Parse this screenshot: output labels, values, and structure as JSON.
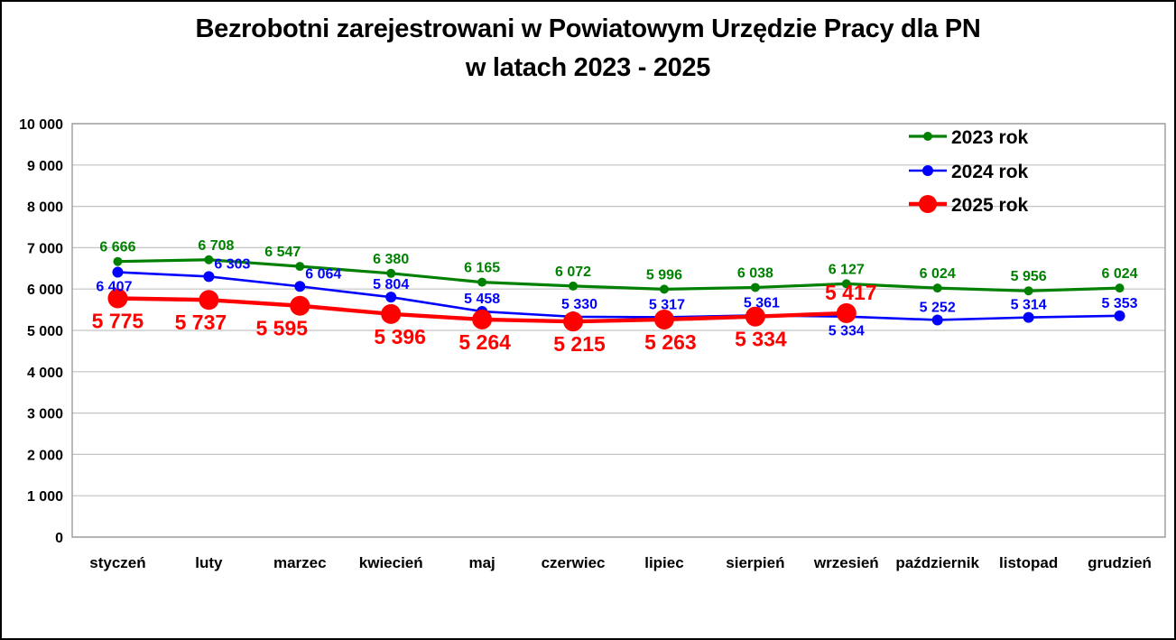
{
  "page": {
    "title_line1": "Bezrobotni zarejestrowani w Powiatowym Urzędzie Pracy dla PN",
    "title_line2": "w latach 2023 - 2025"
  },
  "colors": {
    "background": "#ffffff",
    "page_border": "#000000",
    "text": "#000000",
    "gridline": "#c3c3c3",
    "axis_border": "#9b9b9b"
  },
  "chart_data": {
    "type": "line",
    "title": "Bezrobotni zarejestrowani w Powiatowym Urzędzie Pracy dla PN w latach 2023 - 2025",
    "categories": [
      "styczeń",
      "luty",
      "marzec",
      "kwiecień",
      "maj",
      "czerwiec",
      "lipiec",
      "sierpień",
      "wrzesień",
      "październik",
      "listopad",
      "grudzień"
    ],
    "xlabel": "",
    "ylabel": "",
    "grid": "horizontal",
    "legend_position": "top-right",
    "y_axis": {
      "min": 0,
      "max": 10000,
      "step": 1000,
      "tick_labels": [
        "0",
        "1 000",
        "2 000",
        "3 000",
        "4 000",
        "5 000",
        "6 000",
        "7 000",
        "8 000",
        "9 000",
        "10 000"
      ]
    },
    "series": [
      {
        "name": "2023 rok",
        "color": "#008000",
        "line_width": 3.2,
        "marker_radius": 5,
        "label_font_size": 16,
        "values": [
          6666,
          6708,
          6547,
          6380,
          6165,
          6072,
          5996,
          6038,
          6127,
          6024,
          5956,
          6024
        ],
        "labels": [
          "6 666",
          "6 708",
          "6 547",
          "6 380",
          "6 165",
          "6 072",
          "5 996",
          "6 038",
          "6 127",
          "6 024",
          "5 956",
          "6 024"
        ],
        "label_positions": [
          "above",
          "above",
          "above",
          "above",
          "above",
          "above",
          "above",
          "above",
          "above",
          "above",
          "above",
          "above"
        ],
        "label_dx": [
          0,
          8,
          -19,
          0,
          0,
          0,
          0,
          0,
          0,
          0,
          0,
          0
        ]
      },
      {
        "name": "2024 rok",
        "color": "#0000ff",
        "line_width": 2.6,
        "marker_radius": 6,
        "label_font_size": 16,
        "values": [
          6407,
          6303,
          6064,
          5804,
          5458,
          5330,
          5317,
          5361,
          5334,
          5252,
          5314,
          5353
        ],
        "labels": [
          "6 407",
          "6 303",
          "6 064",
          "5 804",
          "5 458",
          "5 330",
          "5 317",
          "5 361",
          "5 334",
          "5 252",
          "5 314",
          "5 353"
        ],
        "label_positions": [
          "below",
          "above",
          "above",
          "above",
          "above",
          "above",
          "above",
          "above",
          "below",
          "above",
          "above",
          "above"
        ],
        "label_dx": [
          -4,
          26,
          26,
          0,
          0,
          7,
          3,
          7,
          0,
          0,
          0,
          0
        ]
      },
      {
        "name": "2025 rok",
        "color": "#ff0000",
        "line_width": 4.4,
        "marker_radius": 11,
        "label_font_size": 23,
        "values": [
          5775,
          5737,
          5595,
          5396,
          5264,
          5215,
          5263,
          5334,
          5417
        ],
        "labels": [
          "5 775",
          "5 737",
          "5 595",
          "5 396",
          "5 264",
          "5 215",
          "5 263",
          "5 334",
          "5 417"
        ],
        "label_positions": [
          "below",
          "below",
          "below",
          "below",
          "below",
          "below",
          "below",
          "below",
          "above"
        ],
        "label_dx": [
          0,
          -9,
          -20,
          10,
          3,
          7,
          7,
          6,
          5
        ]
      }
    ],
    "legend": {
      "entries": [
        "2023 rok",
        "2024 rok",
        "2025 rok"
      ],
      "font_size": 21
    }
  }
}
